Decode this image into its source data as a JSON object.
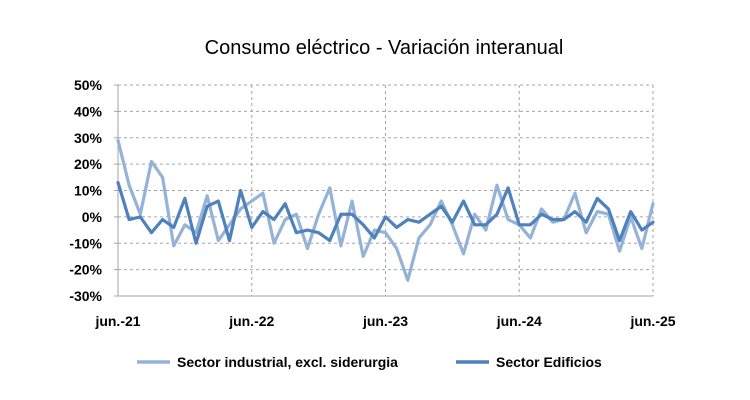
{
  "chart_data": {
    "type": "line",
    "title": "Consumo eléctrico -  Variación interanual",
    "xlabel": "",
    "ylabel": "",
    "y_tick_labels": [
      "50%",
      "40%",
      "30%",
      "20%",
      "10%",
      "0%",
      "-10%",
      "-20%",
      "-30%"
    ],
    "y_ticks": [
      50,
      40,
      30,
      20,
      10,
      0,
      -10,
      -20,
      -30
    ],
    "ylim": [
      -30,
      50
    ],
    "x_tick_labels": [
      "jun.-21",
      "jun.-22",
      "jun.-23",
      "jun.-24",
      "jun.-25"
    ],
    "x_tick_positions": [
      0,
      12,
      24,
      36,
      48
    ],
    "x_count": 49,
    "grid": true,
    "legend_position": "bottom",
    "series": [
      {
        "name": "Sector industrial, excl. siderurgia",
        "color": "#95b3d7",
        "values": [
          29,
          12,
          1,
          21,
          15,
          -11,
          -3,
          -6,
          8,
          -9,
          -3,
          3,
          6,
          9,
          -10,
          -1,
          1,
          -12,
          1,
          11,
          -11,
          6,
          -15,
          -5,
          -6,
          -12,
          -24,
          -8,
          -3,
          6,
          -3,
          -14,
          1,
          -5,
          12,
          -1,
          -3,
          -8,
          3,
          -2,
          -1,
          9,
          -6,
          2,
          1,
          -13,
          0,
          -12,
          5
        ]
      },
      {
        "name": "Sector Edificios",
        "color": "#4f81bd",
        "values": [
          13,
          -1,
          0,
          -6,
          -1,
          -4,
          7,
          -10,
          4,
          6,
          -9,
          10,
          -4,
          2,
          -1,
          5,
          -6,
          -5,
          -6,
          -9,
          1,
          1,
          -3,
          -8,
          0,
          -4,
          -1,
          -2,
          1,
          4,
          -2,
          6,
          -3,
          -3,
          1,
          11,
          -3,
          -3,
          1,
          -1,
          -1,
          2,
          -2,
          7,
          3,
          -9,
          2,
          -5,
          -2
        ]
      }
    ]
  }
}
